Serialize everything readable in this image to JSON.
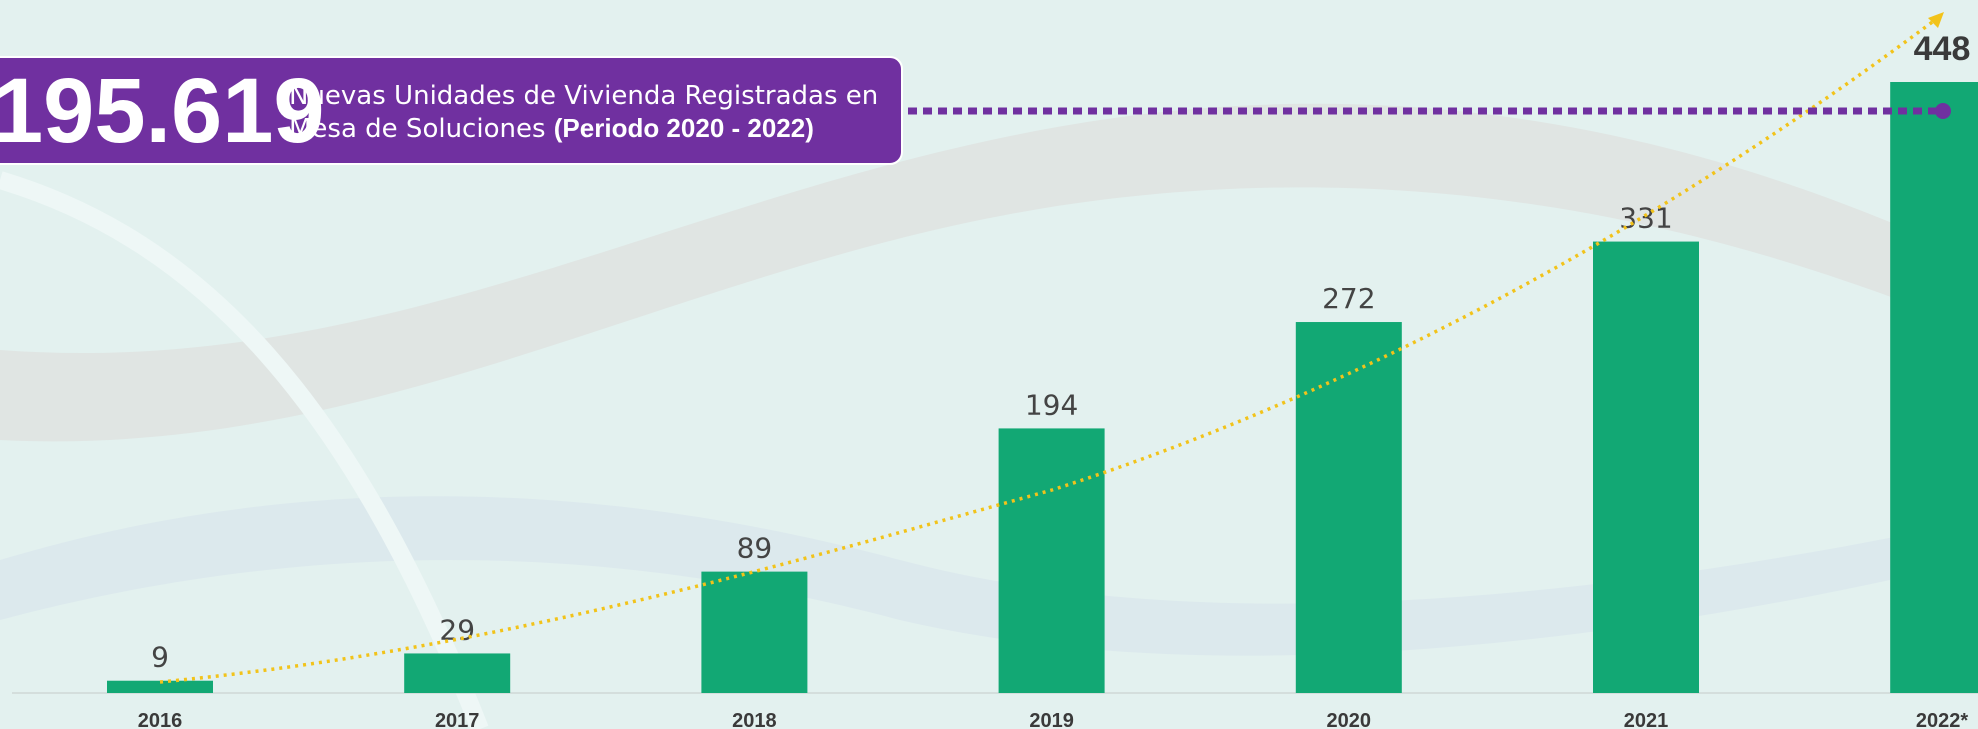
{
  "chart_data": {
    "type": "bar",
    "categories": [
      "2016",
      "2017",
      "2018",
      "2019",
      "2020",
      "2021",
      "2022*"
    ],
    "values": [
      9,
      29,
      89,
      194,
      272,
      331,
      448
    ],
    "color": "#12a874"
  },
  "callout": {
    "number": "195.619",
    "line1": "Nuevas Unidades de Vivienda Registradas en",
    "line2": "Mesa de Soluciones",
    "period": "(Periodo 2020 - 2022)"
  }
}
